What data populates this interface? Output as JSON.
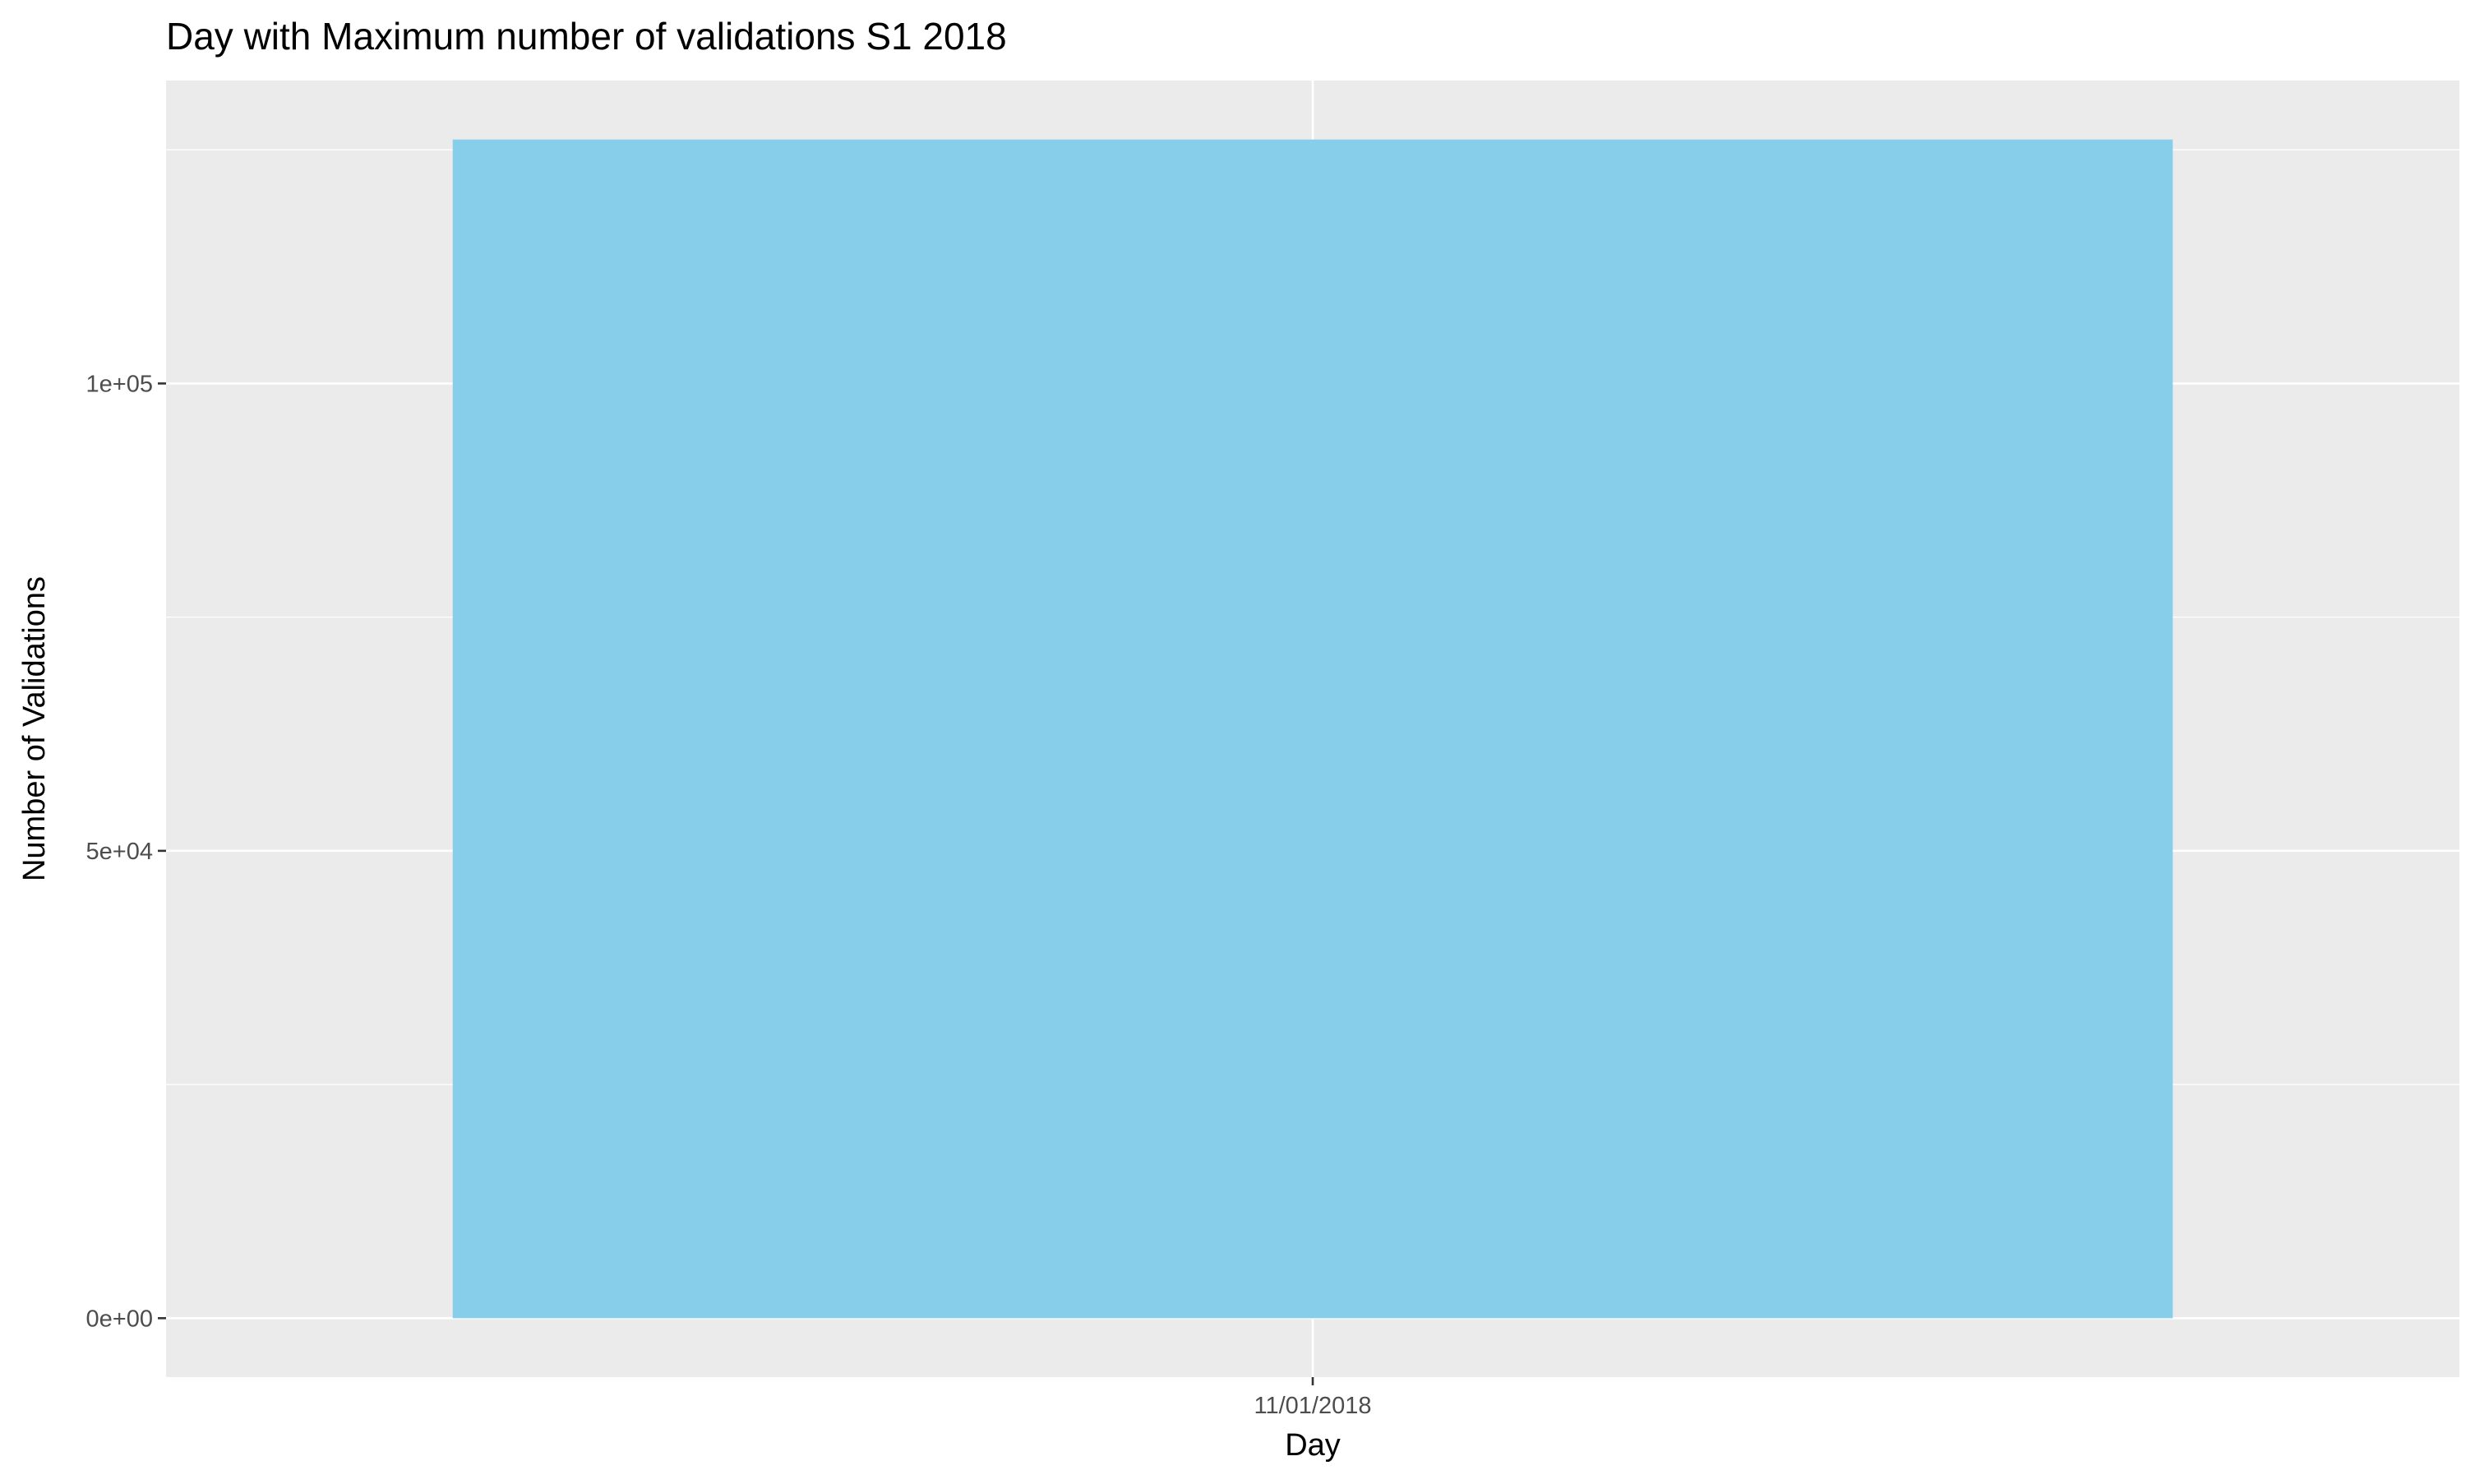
{
  "chart_data": {
    "type": "bar",
    "title": "Day with Maximum number of validations S1 2018",
    "xlabel": "Day",
    "ylabel": "Number of Validations",
    "categories": [
      "11/01/2018"
    ],
    "values": [
      126100
    ],
    "ylim": [
      -6305,
      132405
    ],
    "yticks": [
      0,
      50000,
      100000
    ],
    "ytick_labels": [
      "0e+00",
      "5e+04",
      "1e+05"
    ],
    "grid": true,
    "legend": "none",
    "colors": {
      "bar": "#87CEEB",
      "panel_background": "#EBEBEB",
      "grid_major": "#FFFFFF",
      "grid_minor": "#FFFFFF",
      "tick_text": "#4D4D4D",
      "axis_title": "#000000",
      "tick_mark": "#333333"
    }
  }
}
